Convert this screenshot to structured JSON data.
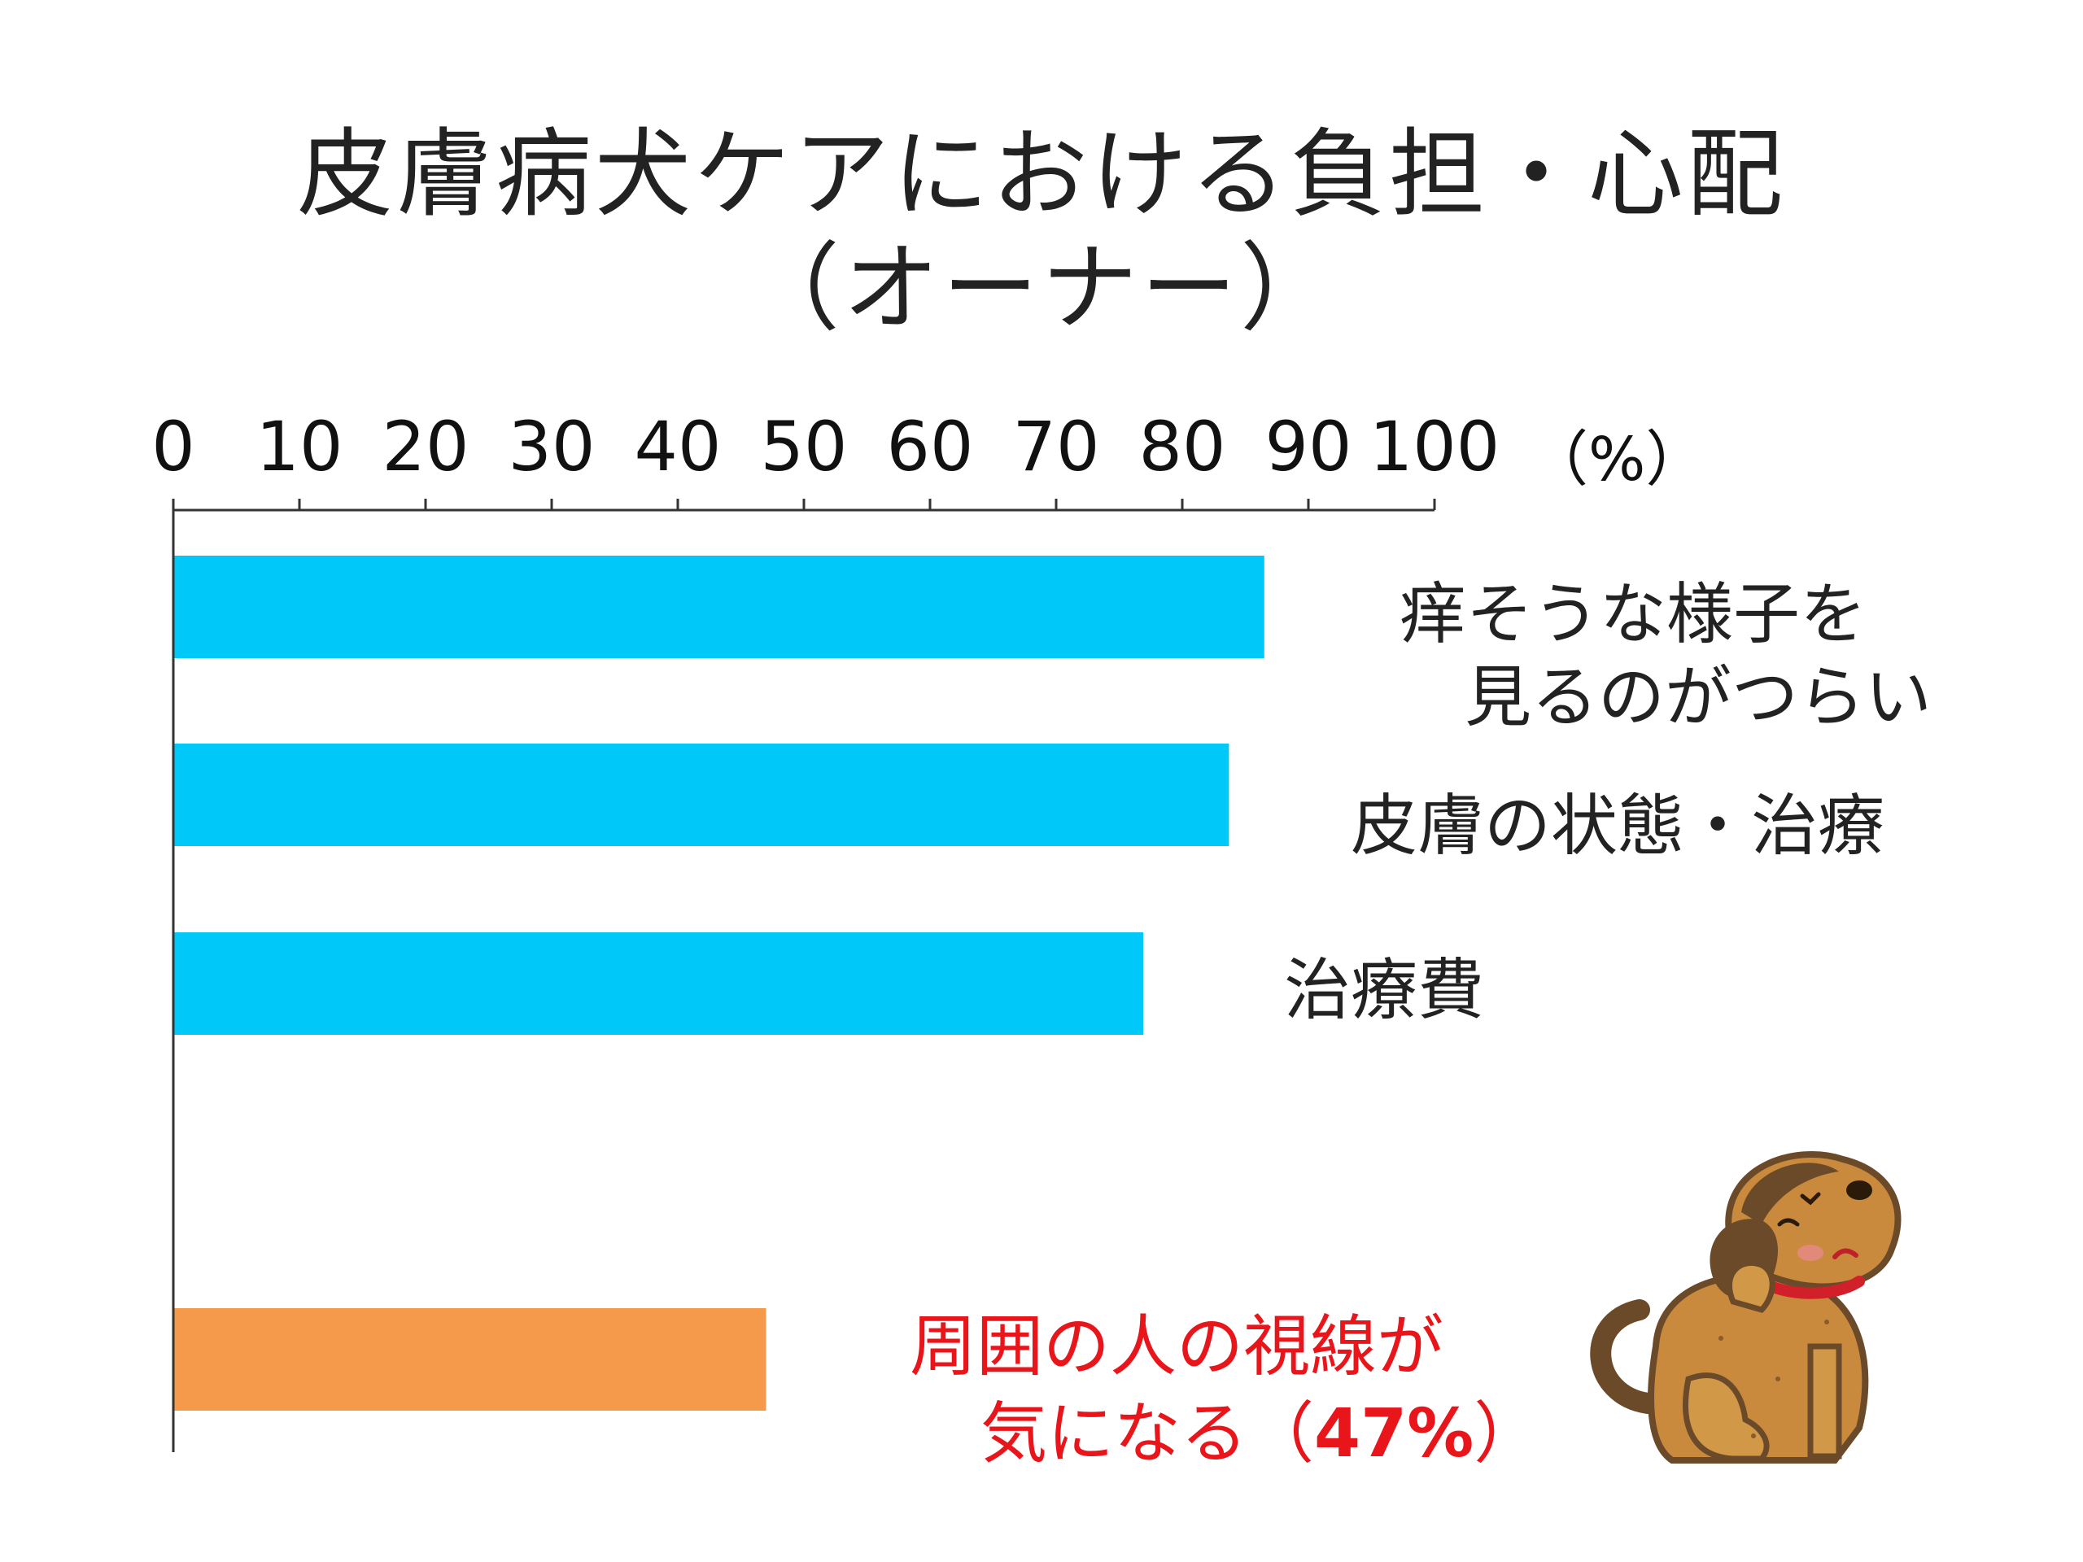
{
  "title": [
    "皮膚病犬ケアにおける負担・心配",
    "（オーナー）"
  ],
  "chart_data": {
    "type": "bar",
    "orientation": "horizontal",
    "title": "皮膚病犬ケアにおける負担・心配（オーナー）",
    "xlabel": "（%）",
    "xlim": [
      0,
      100
    ],
    "x_ticks": [
      "0",
      "10",
      "20",
      "30",
      "40",
      "50",
      "60",
      "70",
      "80",
      "90",
      "100"
    ],
    "axis_position": "top",
    "grid": false,
    "categories": [
      [
        "痒そうな様子を",
        "見るのがつらい"
      ],
      [
        "皮膚の状態・治療"
      ],
      [
        "治療費"
      ],
      [
        "周囲の人の視線が",
        "気になる（",
        "47%",
        "）"
      ]
    ],
    "values": [
      86.5,
      83.7,
      76.9,
      47
    ],
    "bar_colors": [
      "#00c8f8",
      "#00c8f8",
      "#00c8f8",
      "#f5994a"
    ],
    "highlight_color": "#e8151b",
    "annotations": [
      "47%"
    ]
  },
  "illustration": {
    "icon": "scratching-dog-icon"
  }
}
